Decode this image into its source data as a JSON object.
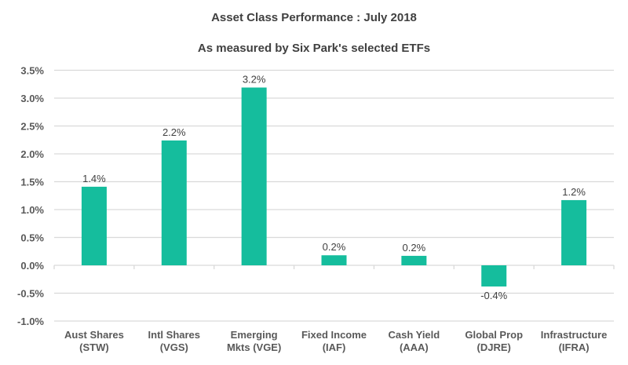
{
  "chart_data": {
    "type": "bar",
    "title": "Asset Class Performance : July 2018",
    "subtitle": "As measured by Six Park's selected ETFs",
    "categories": [
      [
        "Aust Shares",
        "(STW)"
      ],
      [
        "Intl Shares",
        "(VGS)"
      ],
      [
        "Emerging",
        "Mkts (VGE)"
      ],
      [
        "Fixed Income",
        "(IAF)"
      ],
      [
        "Cash Yield",
        "(AAA)"
      ],
      [
        "Global Prop",
        "(DJRE)"
      ],
      [
        "Infrastructure",
        "(IFRA)"
      ]
    ],
    "values": [
      1.41,
      2.24,
      3.19,
      0.18,
      0.17,
      -0.38,
      1.17
    ],
    "data_labels": [
      "1.4%",
      "2.2%",
      "3.2%",
      "0.2%",
      "0.2%",
      "-0.4%",
      "1.2%"
    ],
    "yticks": [
      "-1.0%",
      "-0.5%",
      "0.0%",
      "0.5%",
      "1.0%",
      "1.5%",
      "2.0%",
      "2.5%",
      "3.0%",
      "3.5%"
    ],
    "ylim": [
      -1.0,
      3.5
    ],
    "xlabel": "",
    "ylabel": "",
    "grid": true,
    "bar_color": "#15bd9d"
  }
}
